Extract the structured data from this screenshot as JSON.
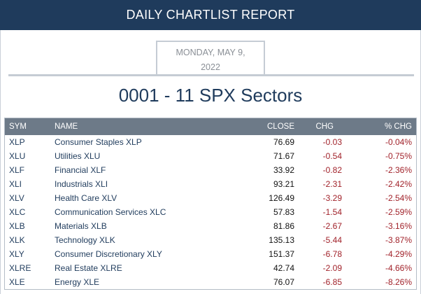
{
  "header": {
    "title": "DAILY CHARTLIST REPORT"
  },
  "report": {
    "date_line1": "MONDAY, MAY 9,",
    "date_line2": "2022",
    "list_title": "0001 - 11 SPX Sectors"
  },
  "table": {
    "columns": [
      "SYM",
      "NAME",
      "CLOSE",
      "CHG",
      "% CHG"
    ],
    "rows": [
      {
        "sym": "XLP",
        "name": "Consumer Staples XLP",
        "close": "76.69",
        "chg": "-0.03",
        "pct": "-0.04%"
      },
      {
        "sym": "XLU",
        "name": "Utilities XLU",
        "close": "71.67",
        "chg": "-0.54",
        "pct": "-0.75%"
      },
      {
        "sym": "XLF",
        "name": "Financial XLF",
        "close": "33.92",
        "chg": "-0.82",
        "pct": "-2.36%"
      },
      {
        "sym": "XLI",
        "name": "Industrials XLI",
        "close": "93.21",
        "chg": "-2.31",
        "pct": "-2.42%"
      },
      {
        "sym": "XLV",
        "name": "Health Care XLV",
        "close": "126.49",
        "chg": "-3.29",
        "pct": "-2.54%"
      },
      {
        "sym": "XLC",
        "name": "Communication Services XLC",
        "close": "57.83",
        "chg": "-1.54",
        "pct": "-2.59%"
      },
      {
        "sym": "XLB",
        "name": "Materials XLB",
        "close": "81.86",
        "chg": "-2.67",
        "pct": "-3.16%"
      },
      {
        "sym": "XLK",
        "name": "Technology XLK",
        "close": "135.13",
        "chg": "-5.44",
        "pct": "-3.87%"
      },
      {
        "sym": "XLY",
        "name": "Consumer Discretionary XLY",
        "close": "151.37",
        "chg": "-6.78",
        "pct": "-4.29%"
      },
      {
        "sym": "XLRE",
        "name": "Real Estate XLRE",
        "close": "42.74",
        "chg": "-2.09",
        "pct": "-4.66%"
      },
      {
        "sym": "XLE",
        "name": "Energy XLE",
        "close": "76.07",
        "chg": "-6.85",
        "pct": "-8.26%"
      }
    ]
  },
  "colors": {
    "header_bg": "#1f3b5c",
    "table_header_bg": "#6d7a88",
    "link_text": "#1f3b5c",
    "negative": "#a1222a"
  }
}
